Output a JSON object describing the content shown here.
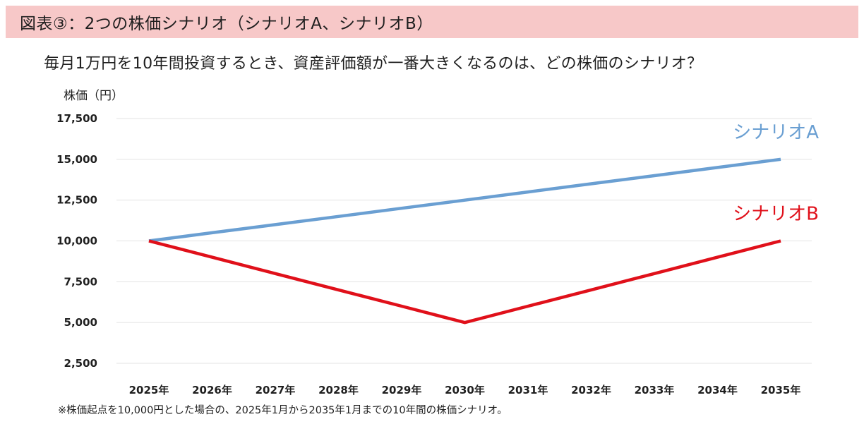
{
  "header": {
    "title": "図表③：2つの株価シナリオ（シナリオA、シナリオB）"
  },
  "question": "毎月1万円を10年間投資するとき、資産評価額が一番大きくなるのは、どの株価のシナリオ？",
  "footnote": "※株価起点を10,000円とした場合の、2025年1月から2035年1月までの10年間の株価シナリオ。",
  "colors": {
    "header_bg": "#f7c8c8",
    "scenario_a": "#6a9fd2",
    "scenario_b": "#e0101a",
    "grid": "#e3e3e3"
  },
  "chart_data": {
    "type": "line",
    "title": "",
    "xlabel": "",
    "ylabel": "株価（円）",
    "categories": [
      "2025年",
      "2026年",
      "2027年",
      "2028年",
      "2029年",
      "2030年",
      "2031年",
      "2032年",
      "2033年",
      "2034年",
      "2035年"
    ],
    "y_ticks": [
      "2,500",
      "5,000",
      "7,500",
      "10,000",
      "12,500",
      "15,000",
      "17,500"
    ],
    "y_tick_values": [
      2500,
      5000,
      7500,
      10000,
      12500,
      15000,
      17500
    ],
    "ylim": [
      2500,
      17500
    ],
    "grid": true,
    "legend": "labels at line ends",
    "series": [
      {
        "name": "シナリオA",
        "color": "#6a9fd2",
        "values": [
          10000,
          10500,
          11000,
          11500,
          12000,
          12500,
          13000,
          13500,
          14000,
          14500,
          15000
        ]
      },
      {
        "name": "シナリオB",
        "color": "#e0101a",
        "values": [
          10000,
          9000,
          8000,
          7000,
          6000,
          5000,
          6000,
          7000,
          8000,
          9000,
          10000
        ]
      }
    ]
  }
}
